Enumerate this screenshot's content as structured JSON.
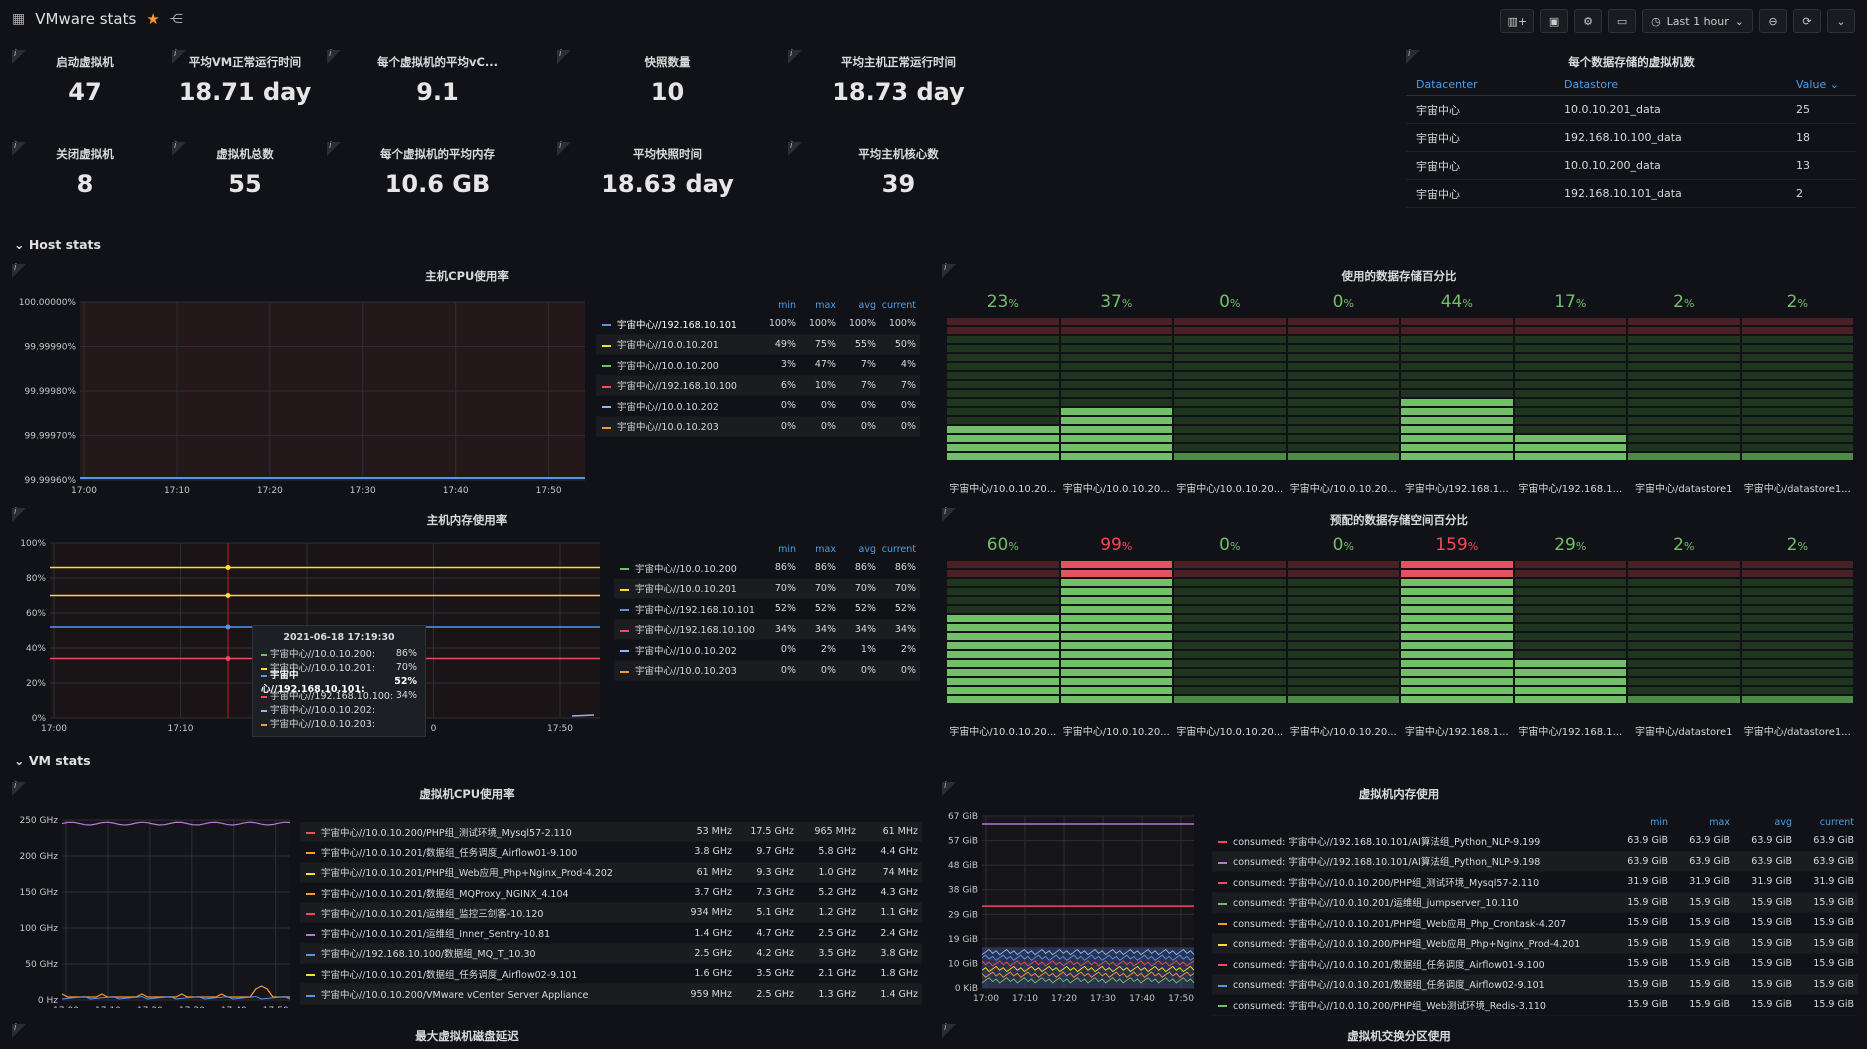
{
  "header": {
    "title": "VMware stats",
    "time_range": "Last 1 hour",
    "icons": [
      "apps-icon",
      "star-icon",
      "share-icon",
      "add-panel-icon",
      "save-icon",
      "settings-icon",
      "tv-icon",
      "clock-icon",
      "zoom-out-icon",
      "refresh-icon",
      "chevron-down-icon"
    ]
  },
  "stats_row1": [
    {
      "title": "启动虚拟机",
      "value": "47"
    },
    {
      "title": "平均VM正常运行时间",
      "value": "18.71 day"
    },
    {
      "title": "每个虚拟机的平均vC...",
      "value": "9.1"
    },
    {
      "title": "快照数量",
      "value": "10"
    },
    {
      "title": "平均主机正常运行时间",
      "value": "18.73 day"
    }
  ],
  "stats_row2": [
    {
      "title": "关闭虚拟机",
      "value": "8"
    },
    {
      "title": "虚拟机总数",
      "value": "55"
    },
    {
      "title": "每个虚拟机的平均内存",
      "value": "10.6 GB"
    },
    {
      "title": "平均快照时间",
      "value": "18.63 day"
    },
    {
      "title": "平均主机核心数",
      "value": "39"
    }
  ],
  "ds_table": {
    "title": "每个数据存储的虚拟机数",
    "headers": [
      "Datacenter",
      "Datastore",
      "Value"
    ],
    "rows": [
      [
        "宇宙中心",
        "10.0.10.201_data",
        "25"
      ],
      [
        "宇宙中心",
        "192.168.10.100_data",
        "18"
      ],
      [
        "宇宙中心",
        "10.0.10.200_data",
        "13"
      ],
      [
        "宇宙中心",
        "192.168.10.101_data",
        "2"
      ]
    ]
  },
  "rows": {
    "host": "Host stats",
    "vm": "VM stats"
  },
  "host_cpu": {
    "title": "主机CPU使用率",
    "yticks": [
      "100.00000%",
      "99.99990%",
      "99.99980%",
      "99.99970%",
      "99.99960%"
    ],
    "xticks": [
      "17:00",
      "17:10",
      "17:20",
      "17:30",
      "17:40",
      "17:50"
    ],
    "legend_headers": [
      "min",
      "max",
      "avg",
      "current"
    ],
    "legend": [
      {
        "name": "宇宙中心//192.168.10.101",
        "color": "#5794f2",
        "vals": [
          "100%",
          "100%",
          "100%",
          "100%"
        ],
        "bright": true
      },
      {
        "name": "宇宙中心//10.0.10.201",
        "color": "#fade2a",
        "vals": [
          "49%",
          "75%",
          "55%",
          "50%"
        ]
      },
      {
        "name": "宇宙中心//10.0.10.200",
        "color": "#73bf69",
        "vals": [
          "3%",
          "47%",
          "7%",
          "4%"
        ]
      },
      {
        "name": "宇宙中心//192.168.10.100",
        "color": "#f2495c",
        "vals": [
          "6%",
          "10%",
          "7%",
          "7%"
        ]
      },
      {
        "name": "宇宙中心//10.0.10.202",
        "color": "#8ab8ff",
        "vals": [
          "0%",
          "0%",
          "0%",
          "0%"
        ]
      },
      {
        "name": "宇宙中心//10.0.10.203",
        "color": "#ff9830",
        "vals": [
          "0%",
          "0%",
          "0%",
          "0%"
        ]
      }
    ]
  },
  "ds_used": {
    "title": "使用的数据存储百分比",
    "items": [
      {
        "pct": "23",
        "label": "宇宙中心/10.0.10.20...",
        "value": 23
      },
      {
        "pct": "37",
        "label": "宇宙中心/10.0.10.20...",
        "value": 37
      },
      {
        "pct": "0",
        "label": "宇宙中心/10.0.10.20...",
        "value": 0
      },
      {
        "pct": "0",
        "label": "宇宙中心/10.0.10.20...",
        "value": 0
      },
      {
        "pct": "44",
        "label": "宇宙中心/192.168.1...",
        "value": 44
      },
      {
        "pct": "17",
        "label": "宇宙中心/192.168.1...",
        "value": 17
      },
      {
        "pct": "2",
        "label": "宇宙中心/datastore1",
        "value": 2
      },
      {
        "pct": "2",
        "label": "宇宙中心/datastore1...",
        "value": 2
      }
    ]
  },
  "host_mem": {
    "title": "主机内存使用率",
    "yticks": [
      "100%",
      "80%",
      "60%",
      "40%",
      "20%",
      "0%"
    ],
    "xticks": [
      "17:00",
      "17:10",
      "17:20",
      "0",
      "17:50"
    ],
    "legend_headers": [
      "min",
      "max",
      "avg",
      "current"
    ],
    "legend": [
      {
        "name": "宇宙中心//10.0.10.200",
        "color": "#73bf69",
        "vals": [
          "86%",
          "86%",
          "86%",
          "86%"
        ]
      },
      {
        "name": "宇宙中心//10.0.10.201",
        "color": "#fade2a",
        "vals": [
          "70%",
          "70%",
          "70%",
          "70%"
        ]
      },
      {
        "name": "宇宙中心//192.168.10.101",
        "color": "#5794f2",
        "vals": [
          "52%",
          "52%",
          "52%",
          "52%"
        ]
      },
      {
        "name": "宇宙中心//192.168.10.100",
        "color": "#f2495c",
        "vals": [
          "34%",
          "34%",
          "34%",
          "34%"
        ]
      },
      {
        "name": "宇宙中心//10.0.10.202",
        "color": "#8ab8ff",
        "vals": [
          "0%",
          "2%",
          "1%",
          "2%"
        ]
      },
      {
        "name": "宇宙中心//10.0.10.203",
        "color": "#ff9830",
        "vals": [
          "0%",
          "0%",
          "0%",
          "0%"
        ]
      }
    ],
    "tooltip": {
      "time": "2021-06-18 17:19:30",
      "rows": [
        {
          "name": "宇宙中心//10.0.10.200:",
          "val": "86%",
          "color": "#73bf69"
        },
        {
          "name": "宇宙中心//10.0.10.201:",
          "val": "70%",
          "color": "#fade2a"
        },
        {
          "name": "宇宙中心//192.168.10.101:",
          "val": "52%",
          "color": "#5794f2",
          "bold": true
        },
        {
          "name": "宇宙中心//192.168.10.100:",
          "val": "34%",
          "color": "#f2495c"
        },
        {
          "name": "宇宙中心//10.0.10.202:",
          "val": "",
          "color": "#8ab8ff"
        },
        {
          "name": "宇宙中心//10.0.10.203:",
          "val": "",
          "color": "#ff9830"
        }
      ]
    }
  },
  "ds_prov": {
    "title": "预配的数据存储空间百分比",
    "items": [
      {
        "pct": "60",
        "label": "宇宙中心/10.0.10.20...",
        "value": 60
      },
      {
        "pct": "99",
        "label": "宇宙中心/10.0.10.20...",
        "value": 99,
        "red": true
      },
      {
        "pct": "0",
        "label": "宇宙中心/10.0.10.20...",
        "value": 0
      },
      {
        "pct": "0",
        "label": "宇宙中心/10.0.10.20...",
        "value": 0
      },
      {
        "pct": "159",
        "label": "宇宙中心/192.168.1...",
        "value": 159,
        "red": true
      },
      {
        "pct": "29",
        "label": "宇宙中心/192.168.1...",
        "value": 29
      },
      {
        "pct": "2",
        "label": "宇宙中心/datastore1",
        "value": 2
      },
      {
        "pct": "2",
        "label": "宇宙中心/datastore1...",
        "value": 2
      }
    ]
  },
  "vm_cpu": {
    "title": "虚拟机CPU使用率",
    "yticks": [
      "250 GHz",
      "200 GHz",
      "150 GHz",
      "100 GHz",
      "50 GHz",
      "0 Hz"
    ],
    "xticks": [
      "17:00",
      "17:10",
      "17:20",
      "17:30",
      "17:40",
      "17:50"
    ],
    "legend": [
      {
        "name": "宇宙中心//10.0.10.200/PHP组_测试环境_Mysql57-2.110",
        "color": "#f2495c",
        "vals": [
          "53 MHz",
          "17.5 GHz",
          "965 MHz",
          "61 MHz"
        ]
      },
      {
        "name": "宇宙中心//10.0.10.201/数据组_任务调度_Airflow01-9.100",
        "color": "#ff9830",
        "vals": [
          "3.8 GHz",
          "9.7 GHz",
          "5.8 GHz",
          "4.4 GHz"
        ]
      },
      {
        "name": "宇宙中心//10.0.10.201/PHP组_Web应用_Php+Nginx_Prod-4.202",
        "color": "#fade2a",
        "vals": [
          "61 MHz",
          "9.3 GHz",
          "1.0 GHz",
          "74 MHz"
        ]
      },
      {
        "name": "宇宙中心//10.0.10.201/数据组_MQProxy_NGINX_4.104",
        "color": "#ff9830",
        "vals": [
          "3.7 GHz",
          "7.3 GHz",
          "5.2 GHz",
          "4.3 GHz"
        ]
      },
      {
        "name": "宇宙中心//10.0.10.201/运维组_监控三剑客-10.120",
        "color": "#f2495c",
        "vals": [
          "934 MHz",
          "5.1 GHz",
          "1.2 GHz",
          "1.1 GHz"
        ]
      },
      {
        "name": "宇宙中心//10.0.10.201/运维组_Inner_Sentry-10.81",
        "color": "#b877d9",
        "vals": [
          "1.4 GHz",
          "4.7 GHz",
          "2.5 GHz",
          "2.4 GHz"
        ]
      },
      {
        "name": "宇宙中心//192.168.10.100/数据组_MQ_T_10.30",
        "color": "#5794f2",
        "vals": [
          "2.5 GHz",
          "4.2 GHz",
          "3.5 GHz",
          "3.8 GHz"
        ]
      },
      {
        "name": "宇宙中心//10.0.10.201/数据组_任务调度_Airflow02-9.101",
        "color": "#fade2a",
        "vals": [
          "1.6 GHz",
          "3.5 GHz",
          "2.1 GHz",
          "1.8 GHz"
        ]
      },
      {
        "name": "宇宙中心//10.0.10.200/VMware vCenter Server Appliance",
        "color": "#5794f2",
        "vals": [
          "959 MHz",
          "2.5 GHz",
          "1.3 GHz",
          "1.4 GHz"
        ]
      }
    ]
  },
  "vm_mem": {
    "title": "虚拟机内存使用",
    "yticks": [
      "67 GiB",
      "57 GiB",
      "48 GiB",
      "38 GiB",
      "29 GiB",
      "19 GiB",
      "10 GiB",
      "0 KiB"
    ],
    "xticks": [
      "17:00",
      "17:10",
      "17:20",
      "17:30",
      "17:40",
      "17:50"
    ],
    "legend_headers": [
      "min",
      "max",
      "avg",
      "current"
    ],
    "legend": [
      {
        "name": "consumed: 宇宙中心//192.168.10.101/AI算法组_Python_NLP-9.199",
        "color": "#f2495c",
        "vals": [
          "63.9 GiB",
          "63.9 GiB",
          "63.9 GiB",
          "63.9 GiB"
        ]
      },
      {
        "name": "consumed: 宇宙中心//192.168.10.101/AI算法组_Python_NLP-9.198",
        "color": "#b877d9",
        "vals": [
          "63.9 GiB",
          "63.9 GiB",
          "63.9 GiB",
          "63.9 GiB"
        ]
      },
      {
        "name": "consumed: 宇宙中心//10.0.10.200/PHP组_测试环境_Mysql57-2.110",
        "color": "#f2495c",
        "vals": [
          "31.9 GiB",
          "31.9 GiB",
          "31.9 GiB",
          "31.9 GiB"
        ]
      },
      {
        "name": "consumed: 宇宙中心//10.0.10.201/运维组_jumpserver_10.110",
        "color": "#73bf69",
        "vals": [
          "15.9 GiB",
          "15.9 GiB",
          "15.9 GiB",
          "15.9 GiB"
        ]
      },
      {
        "name": "consumed: 宇宙中心//10.0.10.201/PHP组_Web应用_Php_Crontask-4.207",
        "color": "#ff9830",
        "vals": [
          "15.9 GiB",
          "15.9 GiB",
          "15.9 GiB",
          "15.9 GiB"
        ]
      },
      {
        "name": "consumed: 宇宙中心//10.0.10.200/PHP组_Web应用_Php+Nginx_Prod-4.201",
        "color": "#fade2a",
        "vals": [
          "15.9 GiB",
          "15.9 GiB",
          "15.9 GiB",
          "15.9 GiB"
        ]
      },
      {
        "name": "consumed: 宇宙中心//10.0.10.201/数据组_任务调度_Airflow01-9.100",
        "color": "#f2495c",
        "vals": [
          "15.9 GiB",
          "15.9 GiB",
          "15.9 GiB",
          "15.9 GiB"
        ]
      },
      {
        "name": "consumed: 宇宙中心//10.0.10.201/数据组_任务调度_Airflow02-9.101",
        "color": "#5794f2",
        "vals": [
          "15.9 GiB",
          "15.9 GiB",
          "15.9 GiB",
          "15.9 GiB"
        ]
      },
      {
        "name": "consumed: 宇宙中心//10.0.10.200/PHP组_Web测试环境_Redis-3.110",
        "color": "#73bf69",
        "vals": [
          "15.9 GiB",
          "15.9 GiB",
          "15.9 GiB",
          "15.9 GiB"
        ]
      }
    ]
  },
  "bottom": {
    "vm_disk_title": "最大虚拟机磁盘延迟",
    "vm_swap_title": "虚拟机交换分区使用"
  }
}
